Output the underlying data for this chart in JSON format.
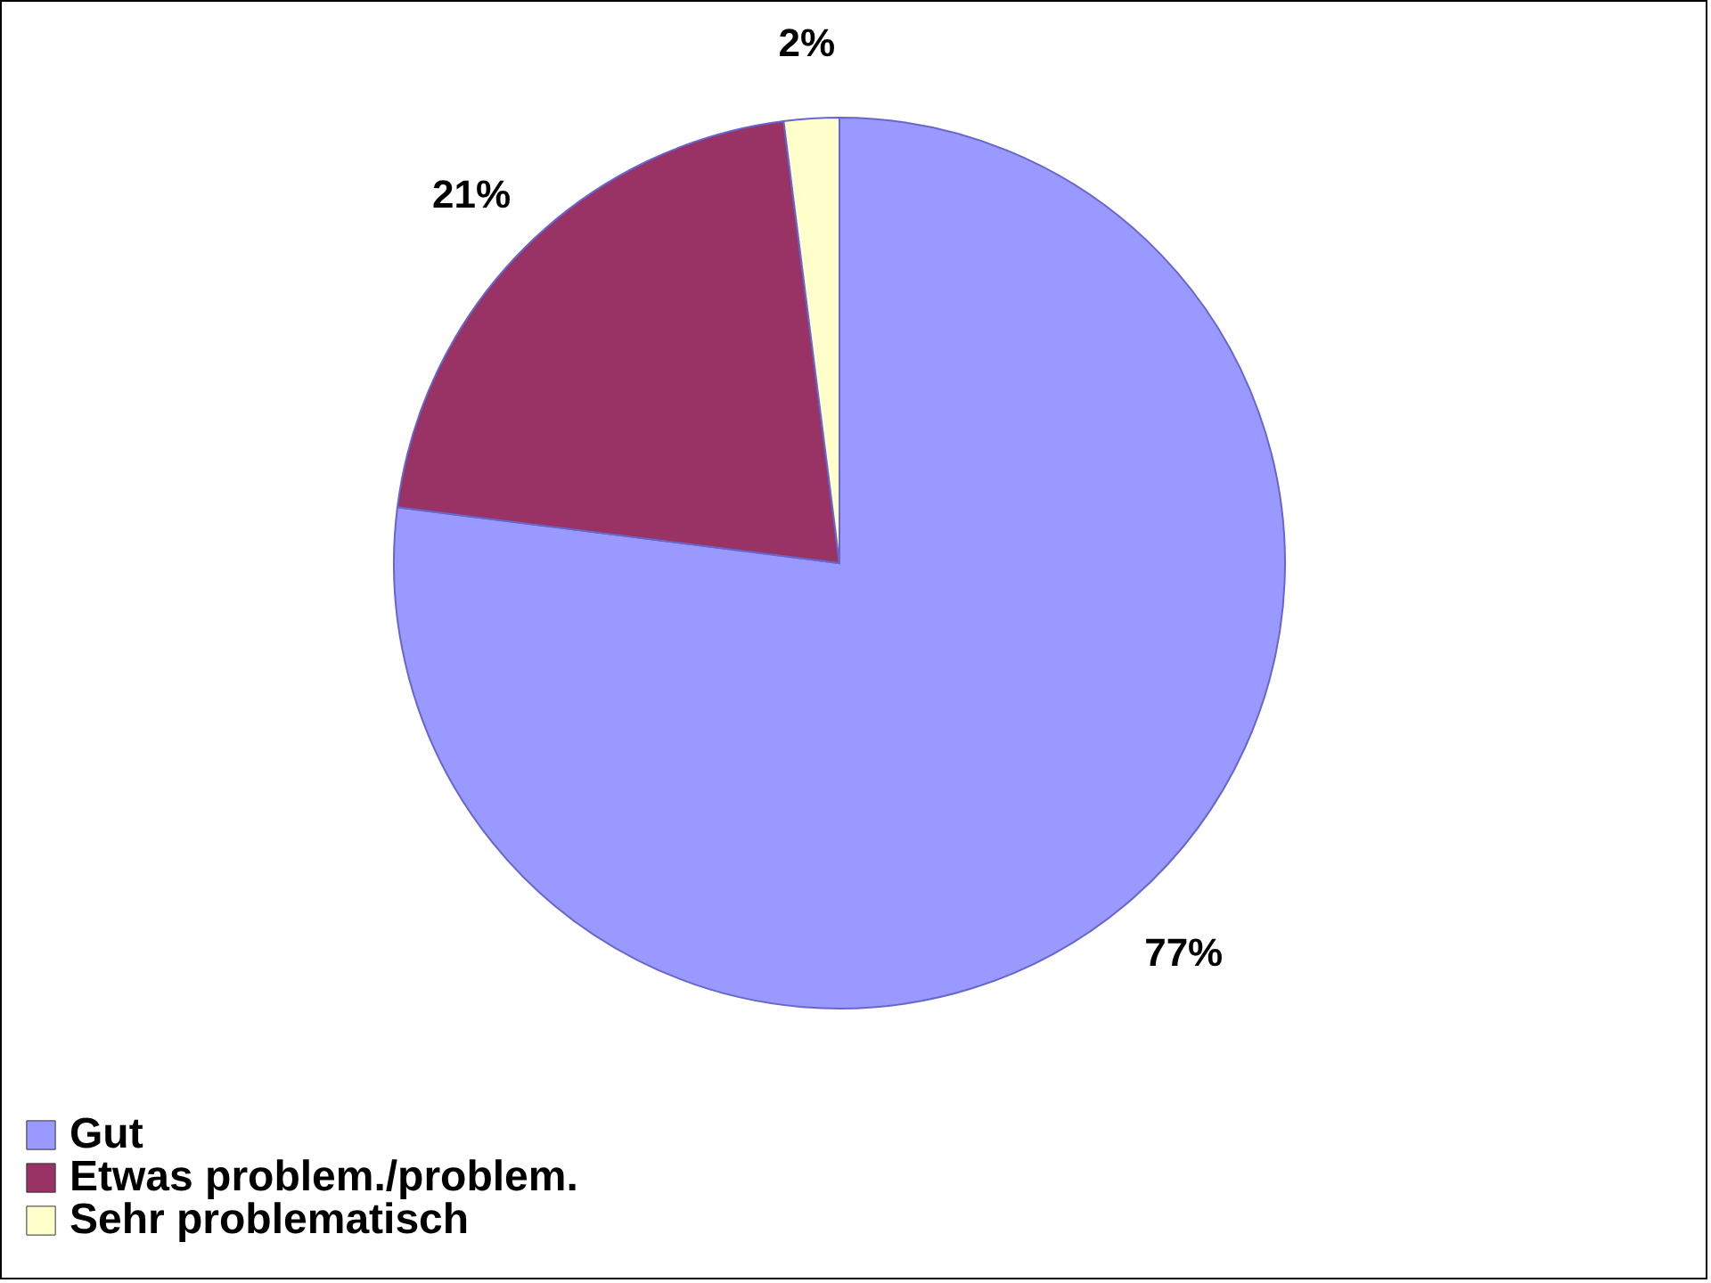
{
  "chart_data": {
    "type": "pie",
    "categories": [
      "Gut",
      "Etwas problem./problem.",
      "Sehr problematisch"
    ],
    "values": [
      77,
      21,
      2
    ],
    "colors": [
      "#9999ff",
      "#993366",
      "#ffffcc"
    ],
    "value_labels": [
      "77%",
      "21%",
      "2%"
    ],
    "legend": "bottom"
  }
}
